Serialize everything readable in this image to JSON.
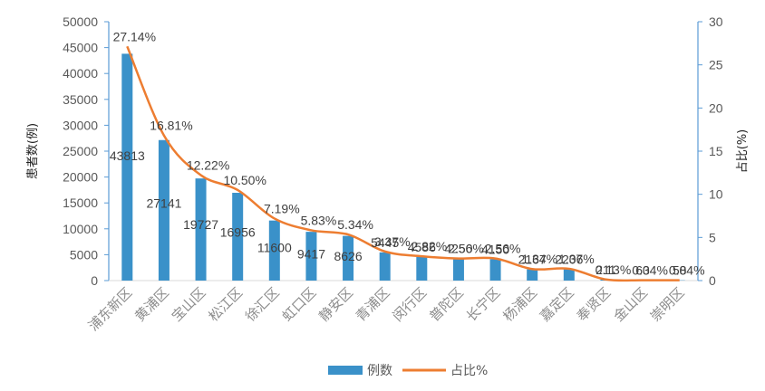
{
  "chart_data": {
    "type": "bar+line",
    "categories": [
      "浦东新区",
      "黄浦区",
      "宝山区",
      "松江区",
      "徐汇区",
      "虹口区",
      "静安区",
      "青浦区",
      "闵行区",
      "普陀区",
      "长宁区",
      "杨浦区",
      "嘉定区",
      "奉贤区",
      "金山区",
      "崇明区"
    ],
    "series": [
      {
        "name": "例数",
        "type": "bar",
        "axis": "left",
        "color": "#3a91c9",
        "values": [
          43813,
          27141,
          19727,
          16956,
          11600,
          9417,
          8626,
          5445,
          4586,
          4250,
          4150,
          2167,
          2206,
          211,
          63,
          58
        ],
        "labels": [
          "43813",
          "27141",
          "19727",
          "16956",
          "11600",
          "9417",
          "8626",
          "5445",
          "4586",
          "4250",
          "4150",
          "2167",
          "2206",
          "211",
          "63",
          "58"
        ]
      },
      {
        "name": "占比%",
        "type": "line",
        "axis": "right",
        "color": "#ed7d31",
        "values": [
          27.14,
          16.81,
          12.22,
          10.5,
          7.19,
          5.83,
          5.34,
          3.37,
          2.82,
          2.56,
          2.56,
          1.34,
          1.37,
          0.13,
          0.04,
          0.04
        ],
        "labels": [
          "27.14%",
          "16.81%",
          "12.22%",
          "10.50%",
          "7.19%",
          "5.83%",
          "5.34%",
          "3.37%",
          "2.82%",
          "2.56%",
          "2.56%",
          "1.34%",
          "1.37%",
          "0.13%",
          "0.04%",
          "0.04%"
        ]
      }
    ],
    "ylabel_left": "患者数(例)",
    "ylabel_right": "占比(%)",
    "ylim_left": [
      0,
      50000
    ],
    "yticks_left": [
      "0",
      "5000",
      "10000",
      "15000",
      "20000",
      "25000",
      "30000",
      "35000",
      "40000",
      "45000",
      "50000"
    ],
    "ylim_right": [
      0,
      30
    ],
    "yticks_right": [
      "0",
      "5",
      "10",
      "15",
      "20",
      "25",
      "30"
    ],
    "legend_position": "bottom",
    "grid": false
  }
}
